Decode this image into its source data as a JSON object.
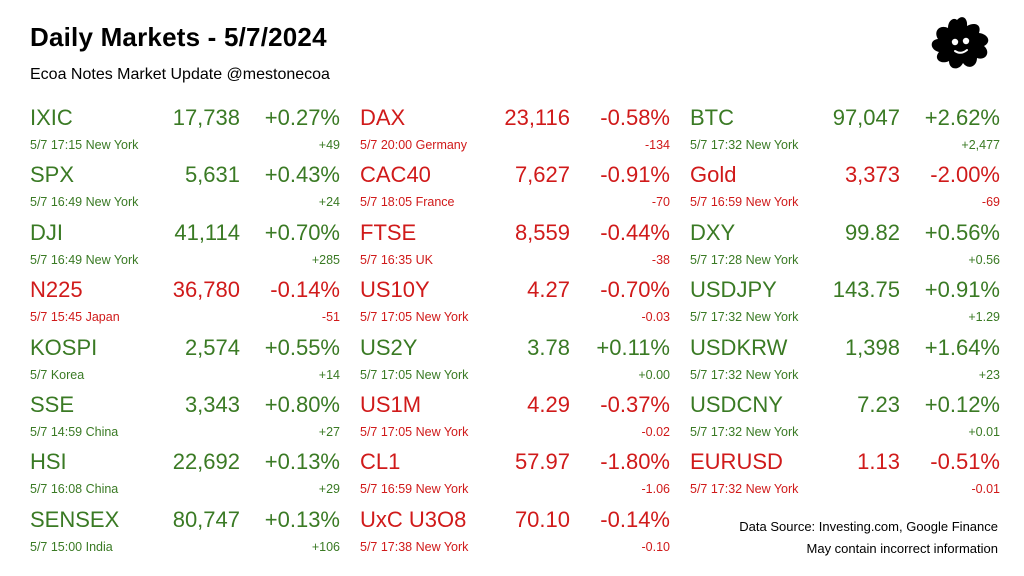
{
  "header": {
    "title": "Daily Markets - 5/7/2024",
    "subtitle": "Ecoa Notes Market Update @mestonecoa"
  },
  "colors": {
    "up": "#3a7a24",
    "down": "#d01a1a"
  },
  "columns": [
    [
      {
        "name": "IXIC",
        "price": "17,738",
        "pct": "+0.27%",
        "meta": "5/7 17:15 New York",
        "change": "+49",
        "dir": "up"
      },
      {
        "name": "SPX",
        "price": "5,631",
        "pct": "+0.43%",
        "meta": "5/7 16:49 New York",
        "change": "+24",
        "dir": "up"
      },
      {
        "name": "DJI",
        "price": "41,114",
        "pct": "+0.70%",
        "meta": "5/7 16:49 New York",
        "change": "+285",
        "dir": "up"
      },
      {
        "name": "N225",
        "price": "36,780",
        "pct": "-0.14%",
        "meta": "5/7 15:45 Japan",
        "change": "-51",
        "dir": "down"
      },
      {
        "name": "KOSPI",
        "price": "2,574",
        "pct": "+0.55%",
        "meta": "5/7  Korea",
        "change": "+14",
        "dir": "up"
      },
      {
        "name": "SSE",
        "price": "3,343",
        "pct": "+0.80%",
        "meta": "5/7 14:59 China",
        "change": "+27",
        "dir": "up"
      },
      {
        "name": "HSI",
        "price": "22,692",
        "pct": "+0.13%",
        "meta": "5/7 16:08 China",
        "change": "+29",
        "dir": "up"
      },
      {
        "name": "SENSEX",
        "price": "80,747",
        "pct": "+0.13%",
        "meta": "5/7 15:00 India",
        "change": "+106",
        "dir": "up"
      }
    ],
    [
      {
        "name": "DAX",
        "price": "23,116",
        "pct": "-0.58%",
        "meta": "5/7 20:00 Germany",
        "change": "-134",
        "dir": "down"
      },
      {
        "name": "CAC40",
        "price": "7,627",
        "pct": "-0.91%",
        "meta": "5/7 18:05 France",
        "change": "-70",
        "dir": "down"
      },
      {
        "name": "FTSE",
        "price": "8,559",
        "pct": "-0.44%",
        "meta": "5/7 16:35 UK",
        "change": "-38",
        "dir": "down"
      },
      {
        "name": "US10Y",
        "price": "4.27",
        "pct": "-0.70%",
        "meta": "5/7 17:05 New York",
        "change": "-0.03",
        "dir": "down"
      },
      {
        "name": "US2Y",
        "price": "3.78",
        "pct": "+0.11%",
        "meta": "5/7 17:05 New York",
        "change": "+0.00",
        "dir": "up"
      },
      {
        "name": "US1M",
        "price": "4.29",
        "pct": "-0.37%",
        "meta": "5/7 17:05 New York",
        "change": "-0.02",
        "dir": "down"
      },
      {
        "name": "CL1",
        "price": "57.97",
        "pct": "-1.80%",
        "meta": "5/7 16:59 New York",
        "change": "-1.06",
        "dir": "down"
      },
      {
        "name": "UxC U3O8",
        "price": "70.10",
        "pct": "-0.14%",
        "meta": "5/7 17:38 New York",
        "change": "-0.10",
        "dir": "down"
      }
    ],
    [
      {
        "name": "BTC",
        "price": "97,047",
        "pct": "+2.62%",
        "meta": "5/7 17:32 New York",
        "change": "+2,477",
        "dir": "up"
      },
      {
        "name": "Gold",
        "price": "3,373",
        "pct": "-2.00%",
        "meta": "5/7 16:59 New York",
        "change": "-69",
        "dir": "down"
      },
      {
        "name": "DXY",
        "price": "99.82",
        "pct": "+0.56%",
        "meta": "5/7 17:28 New York",
        "change": "+0.56",
        "dir": "up"
      },
      {
        "name": "USDJPY",
        "price": "143.75",
        "pct": "+0.91%",
        "meta": "5/7 17:32 New York",
        "change": "+1.29",
        "dir": "up"
      },
      {
        "name": "USDKRW",
        "price": "1,398",
        "pct": "+1.64%",
        "meta": "5/7 17:32 New York",
        "change": "+23",
        "dir": "up"
      },
      {
        "name": "USDCNY",
        "price": "7.23",
        "pct": "+0.12%",
        "meta": "5/7 17:32 New York",
        "change": "+0.01",
        "dir": "up"
      },
      {
        "name": "EURUSD",
        "price": "1.13",
        "pct": "-0.51%",
        "meta": "5/7 17:32 New York",
        "change": "-0.01",
        "dir": "down"
      }
    ]
  ],
  "footer": {
    "source": "Data Source: Investing.com, Google Finance",
    "disclaimer": "May contain incorrect information"
  },
  "logo": {
    "icon": "ink-blob-logo-icon"
  }
}
